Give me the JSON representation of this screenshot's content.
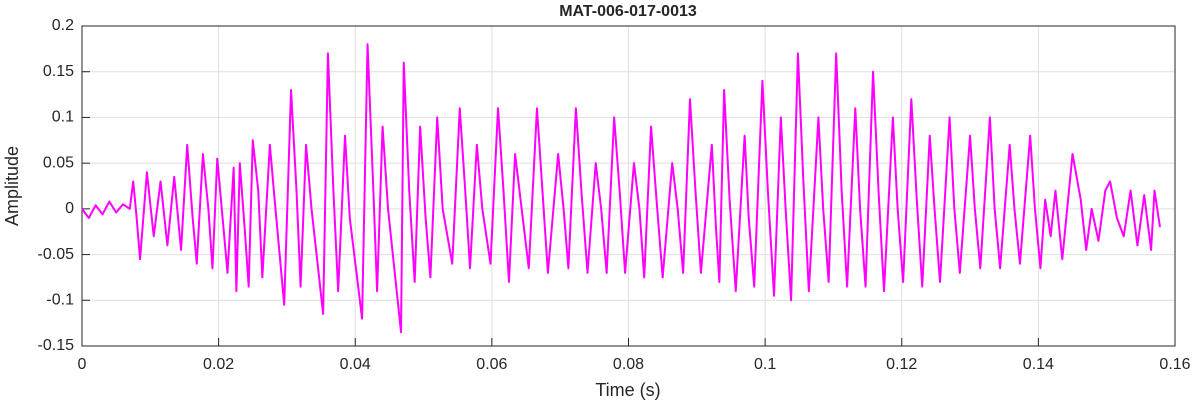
{
  "chart_data": {
    "type": "line",
    "title": "MAT-006-017-0013",
    "xlabel": "Time (s)",
    "ylabel": "Amplitude",
    "color": "#ff00ff",
    "grid": true,
    "xlim": [
      0,
      0.16
    ],
    "xticks": [
      0,
      0.02,
      0.04,
      0.06,
      0.08,
      0.1,
      0.12,
      0.14,
      0.16
    ],
    "ylim": [
      -0.15,
      0.2
    ],
    "yticks": [
      -0.15,
      -0.1,
      -0.05,
      0,
      0.05,
      0.1,
      0.15,
      0.2
    ],
    "x": [
      0,
      0.001,
      0.002,
      0.003,
      0.004,
      0.005,
      0.006,
      0.007,
      0.0075,
      0.008,
      0.0085,
      0.0095,
      0.0105,
      0.0115,
      0.0125,
      0.0135,
      0.0145,
      0.0154,
      0.0162,
      0.0168,
      0.0177,
      0.0185,
      0.0191,
      0.0198,
      0.0207,
      0.0213,
      0.0222,
      0.0226,
      0.0231,
      0.0238,
      0.0244,
      0.025,
      0.0258,
      0.0264,
      0.0275,
      0.0282,
      0.0296,
      0.0306,
      0.0314,
      0.032,
      0.0328,
      0.0336,
      0.0353,
      0.036,
      0.0368,
      0.0375,
      0.0385,
      0.0392,
      0.041,
      0.0418,
      0.0426,
      0.0432,
      0.044,
      0.0448,
      0.0467,
      0.0471,
      0.0479,
      0.0487,
      0.0495,
      0.0503,
      0.051,
      0.052,
      0.0528,
      0.0542,
      0.0553,
      0.0561,
      0.0568,
      0.0578,
      0.0586,
      0.0598,
      0.0609,
      0.0617,
      0.0625,
      0.0634,
      0.0642,
      0.0654,
      0.0666,
      0.0674,
      0.0682,
      0.0697,
      0.0705,
      0.0712,
      0.0723,
      0.0731,
      0.074,
      0.0752,
      0.076,
      0.0768,
      0.0779,
      0.0787,
      0.0795,
      0.0808,
      0.0816,
      0.0823,
      0.0833,
      0.0841,
      0.085,
      0.0864,
      0.0872,
      0.088,
      0.089,
      0.0898,
      0.0906,
      0.0922,
      0.0928,
      0.0933,
      0.094,
      0.0948,
      0.0957,
      0.097,
      0.0976,
      0.0984,
      0.0996,
      0.1004,
      0.1013,
      0.1023,
      0.103,
      0.1038,
      0.1048,
      0.1056,
      0.1064,
      0.1078,
      0.1085,
      0.1093,
      0.1104,
      0.1112,
      0.112,
      0.1132,
      0.1139,
      0.1147,
      0.1158,
      0.1166,
      0.1174,
      0.1187,
      0.1194,
      0.1202,
      0.1214,
      0.1222,
      0.123,
      0.1241,
      0.1248,
      0.1256,
      0.127,
      0.1277,
      0.1285,
      0.13,
      0.1307,
      0.1315,
      0.1329,
      0.1336,
      0.1344,
      0.1358,
      0.1365,
      0.1373,
      0.1388,
      0.1395,
      0.1403,
      0.141,
      0.1418,
      0.1425,
      0.1435,
      0.145,
      0.1462,
      0.147,
      0.1478,
      0.1488,
      0.1498,
      0.1505,
      0.1515,
      0.1525,
      0.1535,
      0.1545,
      0.1555,
      0.1565,
      0.157,
      0.1578
    ],
    "values": [
      0,
      -0.01,
      0.004,
      -0.006,
      0.008,
      -0.004,
      0.005,
      0,
      0.03,
      -0.01,
      -0.055,
      0.04,
      -0.03,
      0.03,
      -0.04,
      0.035,
      -0.045,
      0.07,
      -0.01,
      -0.06,
      0.06,
      0,
      -0.065,
      0.055,
      -0.02,
      -0.07,
      0.045,
      -0.09,
      0.05,
      -0.02,
      -0.085,
      0.075,
      0.02,
      -0.075,
      0.07,
      0.01,
      -0.105,
      0.13,
      0.02,
      -0.085,
      0.07,
      0,
      -0.115,
      0.17,
      0.02,
      -0.09,
      0.08,
      -0.01,
      -0.12,
      0.18,
      0.03,
      -0.09,
      0.09,
      0,
      -0.135,
      0.16,
      0.02,
      -0.08,
      0.09,
      -0.01,
      -0.075,
      0.1,
      0,
      -0.06,
      0.11,
      0.02,
      -0.065,
      0.07,
      0,
      -0.06,
      0.11,
      0.02,
      -0.08,
      0.06,
      0.01,
      -0.065,
      0.11,
      0.02,
      -0.07,
      0.06,
      0,
      -0.065,
      0.11,
      0.02,
      -0.07,
      0.05,
      0,
      -0.07,
      0.1,
      0.02,
      -0.07,
      0.05,
      0,
      -0.075,
      0.09,
      0.01,
      -0.075,
      0.05,
      0,
      -0.07,
      0.12,
      0.02,
      -0.07,
      0.07,
      -0.02,
      -0.08,
      0.13,
      0.01,
      -0.09,
      0.08,
      -0.01,
      -0.085,
      0.14,
      0.02,
      -0.095,
      0.1,
      0,
      -0.1,
      0.17,
      0.03,
      -0.09,
      0.1,
      0,
      -0.08,
      0.17,
      0.02,
      -0.085,
      0.11,
      0,
      -0.085,
      0.15,
      0.02,
      -0.09,
      0.1,
      0,
      -0.08,
      0.12,
      0.01,
      -0.085,
      0.08,
      0,
      -0.08,
      0.1,
      0,
      -0.07,
      0.08,
      0,
      -0.065,
      0.1,
      0,
      -0.065,
      0.07,
      0,
      -0.06,
      0.08,
      0,
      -0.065,
      0.01,
      -0.03,
      0.02,
      -0.055,
      0.06,
      0.01,
      -0.045,
      0,
      -0.035,
      0.02,
      0.03,
      -0.01,
      -0.03,
      0.02,
      -0.04,
      0.015,
      -0.045,
      0.02,
      -0.02
    ]
  }
}
